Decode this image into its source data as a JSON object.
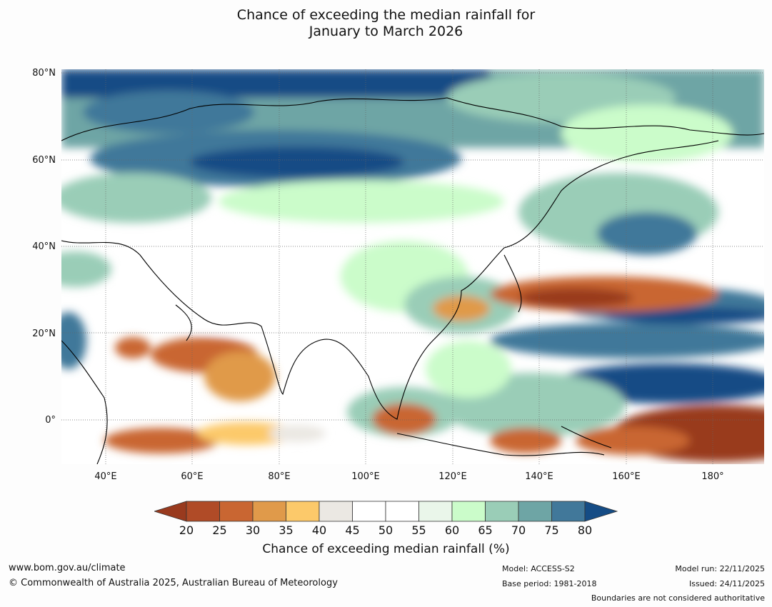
{
  "title_line1": "Chance of exceeding the median rainfall for",
  "title_line2": "January to March 2026",
  "lat_labels": [
    "80°N",
    "60°N",
    "40°N",
    "20°N",
    "0°"
  ],
  "lon_labels": [
    "40°E",
    "60°E",
    "80°E",
    "100°E",
    "120°E",
    "140°E",
    "160°E",
    "180°"
  ],
  "colorbar": {
    "ticks": [
      "20",
      "25",
      "30",
      "35",
      "40",
      "45",
      "50",
      "55",
      "60",
      "65",
      "70",
      "75",
      "80"
    ],
    "colors": [
      "#993a1e",
      "#b04b27",
      "#c96632",
      "#e09a4a",
      "#fcc96a",
      "#ebe8e3",
      "#ffffff",
      "#ffffff",
      "#eaf6ea",
      "#cbfcca",
      "#9acdb7",
      "#6ea5a5",
      "#41789a",
      "#154c85"
    ],
    "label": "Chance of exceeding median rainfall (%)"
  },
  "footer": {
    "website": "www.bom.gov.au/climate",
    "copyright": "© Commonwealth of Australia 2025, Australian Bureau of Meteorology",
    "model": "Model: ACCESS-S2",
    "base_period": "Base period: 1981-2018",
    "model_run": "Model run: 22/11/2025",
    "issued": "Issued: 24/11/2025",
    "disclaimer": "Boundaries are not considered authoritative"
  }
}
